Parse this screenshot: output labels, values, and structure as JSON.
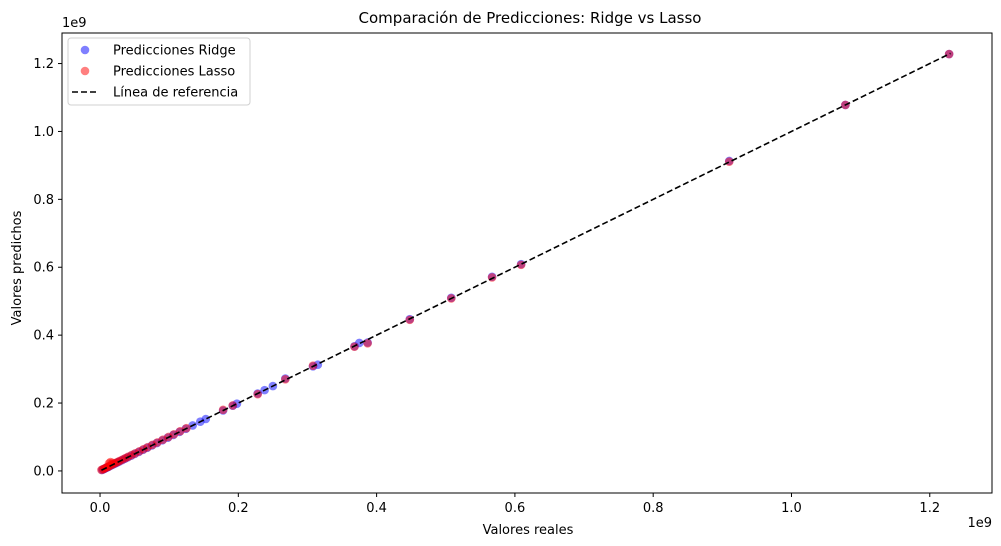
{
  "chart_data": {
    "type": "scatter",
    "title": "Comparación de Predicciones: Ridge vs Lasso",
    "xlabel": "Valores reales",
    "ylabel": "Valores predichos",
    "x_offset_label": "1e9",
    "y_offset_label": "1e9",
    "xlim": [
      -0.055,
      1.29
    ],
    "ylim": [
      -0.065,
      1.29
    ],
    "x_ticks": [
      0.0,
      0.2,
      0.4,
      0.6,
      0.8,
      1.0,
      1.2
    ],
    "x_tick_labels": [
      "0.0",
      "0.2",
      "0.4",
      "0.6",
      "0.8",
      "1.0",
      "1.2"
    ],
    "y_ticks": [
      0.0,
      0.2,
      0.4,
      0.6,
      0.8,
      1.0,
      1.2
    ],
    "y_tick_labels": [
      "0.0",
      "0.2",
      "0.4",
      "0.6",
      "0.8",
      "1.0",
      "1.2"
    ],
    "grid": false,
    "legend_position": "top-left",
    "legend": [
      {
        "label": "Predicciones Ridge",
        "kind": "marker",
        "color": "#0000ff"
      },
      {
        "label": "Predicciones Lasso",
        "kind": "marker",
        "color": "#ff0000"
      },
      {
        "label": "Línea de referencia",
        "kind": "dashed-line",
        "color": "#000000"
      }
    ],
    "reference_line": {
      "x": [
        0.002,
        1.23
      ],
      "y": [
        0.002,
        1.23
      ],
      "color": "#000000",
      "style": "dashed"
    },
    "series": [
      {
        "name": "Predicciones Ridge",
        "color": "#0000ff",
        "alpha": 0.5,
        "x": [
          0.003,
          0.005,
          0.007,
          0.009,
          0.011,
          0.013,
          0.016,
          0.019,
          0.022,
          0.025,
          0.028,
          0.032,
          0.036,
          0.04,
          0.045,
          0.05,
          0.056,
          0.062,
          0.068,
          0.075,
          0.082,
          0.09,
          0.098,
          0.106,
          0.115,
          0.124,
          0.134,
          0.145,
          0.153,
          0.178,
          0.192,
          0.198,
          0.228,
          0.238,
          0.25,
          0.268,
          0.308,
          0.315,
          0.368,
          0.375,
          0.387,
          0.448,
          0.508,
          0.567,
          0.609,
          0.91,
          1.078,
          1.228
        ],
        "y": [
          0.003,
          0.005,
          0.007,
          0.009,
          0.011,
          0.013,
          0.016,
          0.019,
          0.022,
          0.025,
          0.028,
          0.032,
          0.036,
          0.04,
          0.045,
          0.05,
          0.056,
          0.062,
          0.068,
          0.075,
          0.082,
          0.09,
          0.098,
          0.106,
          0.115,
          0.124,
          0.134,
          0.145,
          0.153,
          0.178,
          0.192,
          0.198,
          0.228,
          0.238,
          0.25,
          0.272,
          0.308,
          0.313,
          0.367,
          0.377,
          0.378,
          0.447,
          0.51,
          0.572,
          0.609,
          0.913,
          1.078,
          1.228
        ]
      },
      {
        "name": "Predicciones Lasso",
        "color": "#ff0000",
        "alpha": 0.5,
        "x": [
          0.002,
          0.004,
          0.006,
          0.008,
          0.01,
          0.012,
          0.014,
          0.017,
          0.02,
          0.023,
          0.026,
          0.029,
          0.033,
          0.037,
          0.041,
          0.046,
          0.051,
          0.057,
          0.063,
          0.069,
          0.076,
          0.083,
          0.091,
          0.099,
          0.107,
          0.116,
          0.125,
          0.013,
          0.015,
          0.018,
          0.178,
          0.192,
          0.228,
          0.268,
          0.308,
          0.368,
          0.387,
          0.448,
          0.508,
          0.567,
          0.609,
          0.91,
          1.078,
          1.228
        ],
        "y": [
          0.003,
          0.005,
          0.006,
          0.009,
          0.011,
          0.012,
          0.015,
          0.018,
          0.021,
          0.024,
          0.027,
          0.03,
          0.034,
          0.038,
          0.042,
          0.047,
          0.052,
          0.058,
          0.064,
          0.07,
          0.077,
          0.084,
          0.092,
          0.1,
          0.108,
          0.117,
          0.126,
          0.022,
          0.026,
          0.024,
          0.18,
          0.193,
          0.226,
          0.27,
          0.31,
          0.366,
          0.376,
          0.445,
          0.508,
          0.57,
          0.607,
          0.911,
          1.078,
          1.228
        ]
      }
    ]
  }
}
